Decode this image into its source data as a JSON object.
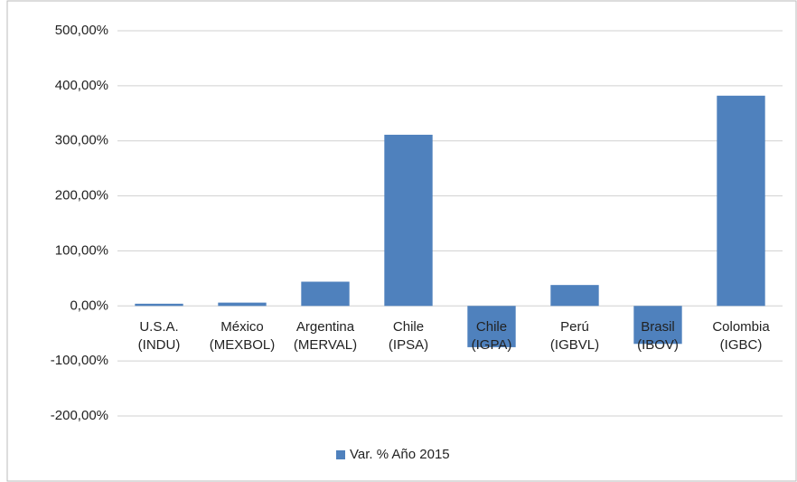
{
  "chart_data": {
    "type": "bar",
    "categories": [
      "U.S.A.\n(INDU)",
      "México\n(MEXBOL)",
      "Argentina\n(MERVAL)",
      "Chile\n(IPSA)",
      "Chile\n(IGPA)",
      "Perú\n(IGBVL)",
      "Brasil\n(IBOV)",
      "Colombia\n(IGBC)"
    ],
    "series": [
      {
        "name": "Var. % Año 2015",
        "color": "#4f81bd",
        "values": [
          4,
          6,
          44,
          311,
          -75,
          38,
          -69,
          382
        ]
      }
    ],
    "ylim": [
      -200,
      500
    ],
    "yticks": [
      {
        "value": -200,
        "label": "-200,00%"
      },
      {
        "value": -100,
        "label": "-100,00%"
      },
      {
        "value": 0,
        "label": "0,00%"
      },
      {
        "value": 100,
        "label": "100,00%"
      },
      {
        "value": 200,
        "label": "200,00%"
      },
      {
        "value": 300,
        "label": "300,00%"
      },
      {
        "value": 400,
        "label": "400,00%"
      },
      {
        "value": 500,
        "label": "500,00%"
      }
    ],
    "grid": true,
    "legend": "bottom"
  }
}
